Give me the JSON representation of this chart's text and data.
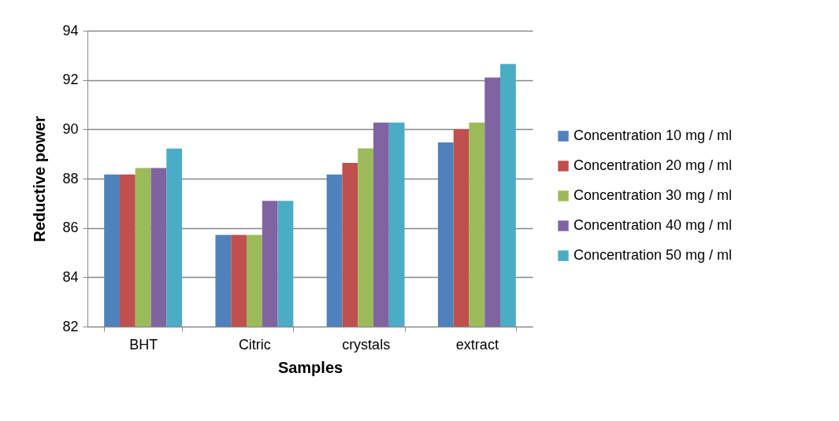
{
  "chart_data": {
    "type": "bar",
    "xlabel": "Samples",
    "ylabel": "Reductive power",
    "categories": [
      "BHT",
      "Citric",
      "crystals",
      "extract"
    ],
    "series": [
      {
        "name": "Concentration 10 mg / ml",
        "color": "#4f81bd",
        "values": [
          88.17,
          85.72,
          88.17,
          89.47
        ]
      },
      {
        "name": "Concentration 20 mg / ml",
        "color": "#c0504d",
        "values": [
          88.17,
          85.72,
          88.64,
          90.0
        ]
      },
      {
        "name": "Concentration 30 mg / ml",
        "color": "#9bbb59",
        "values": [
          88.43,
          85.72,
          89.23,
          90.27
        ]
      },
      {
        "name": "Concentration 40 mg / ml",
        "color": "#8064a2",
        "values": [
          88.43,
          87.1,
          90.27,
          92.1
        ]
      },
      {
        "name": "Concentration 50 mg / ml",
        "color": "#4bacc6",
        "values": [
          89.22,
          87.1,
          90.27,
          92.65
        ]
      }
    ],
    "ylim": [
      82,
      94
    ],
    "yticks": [
      82,
      84,
      86,
      88,
      90,
      92,
      94
    ],
    "grid": "y",
    "legend": "right"
  }
}
